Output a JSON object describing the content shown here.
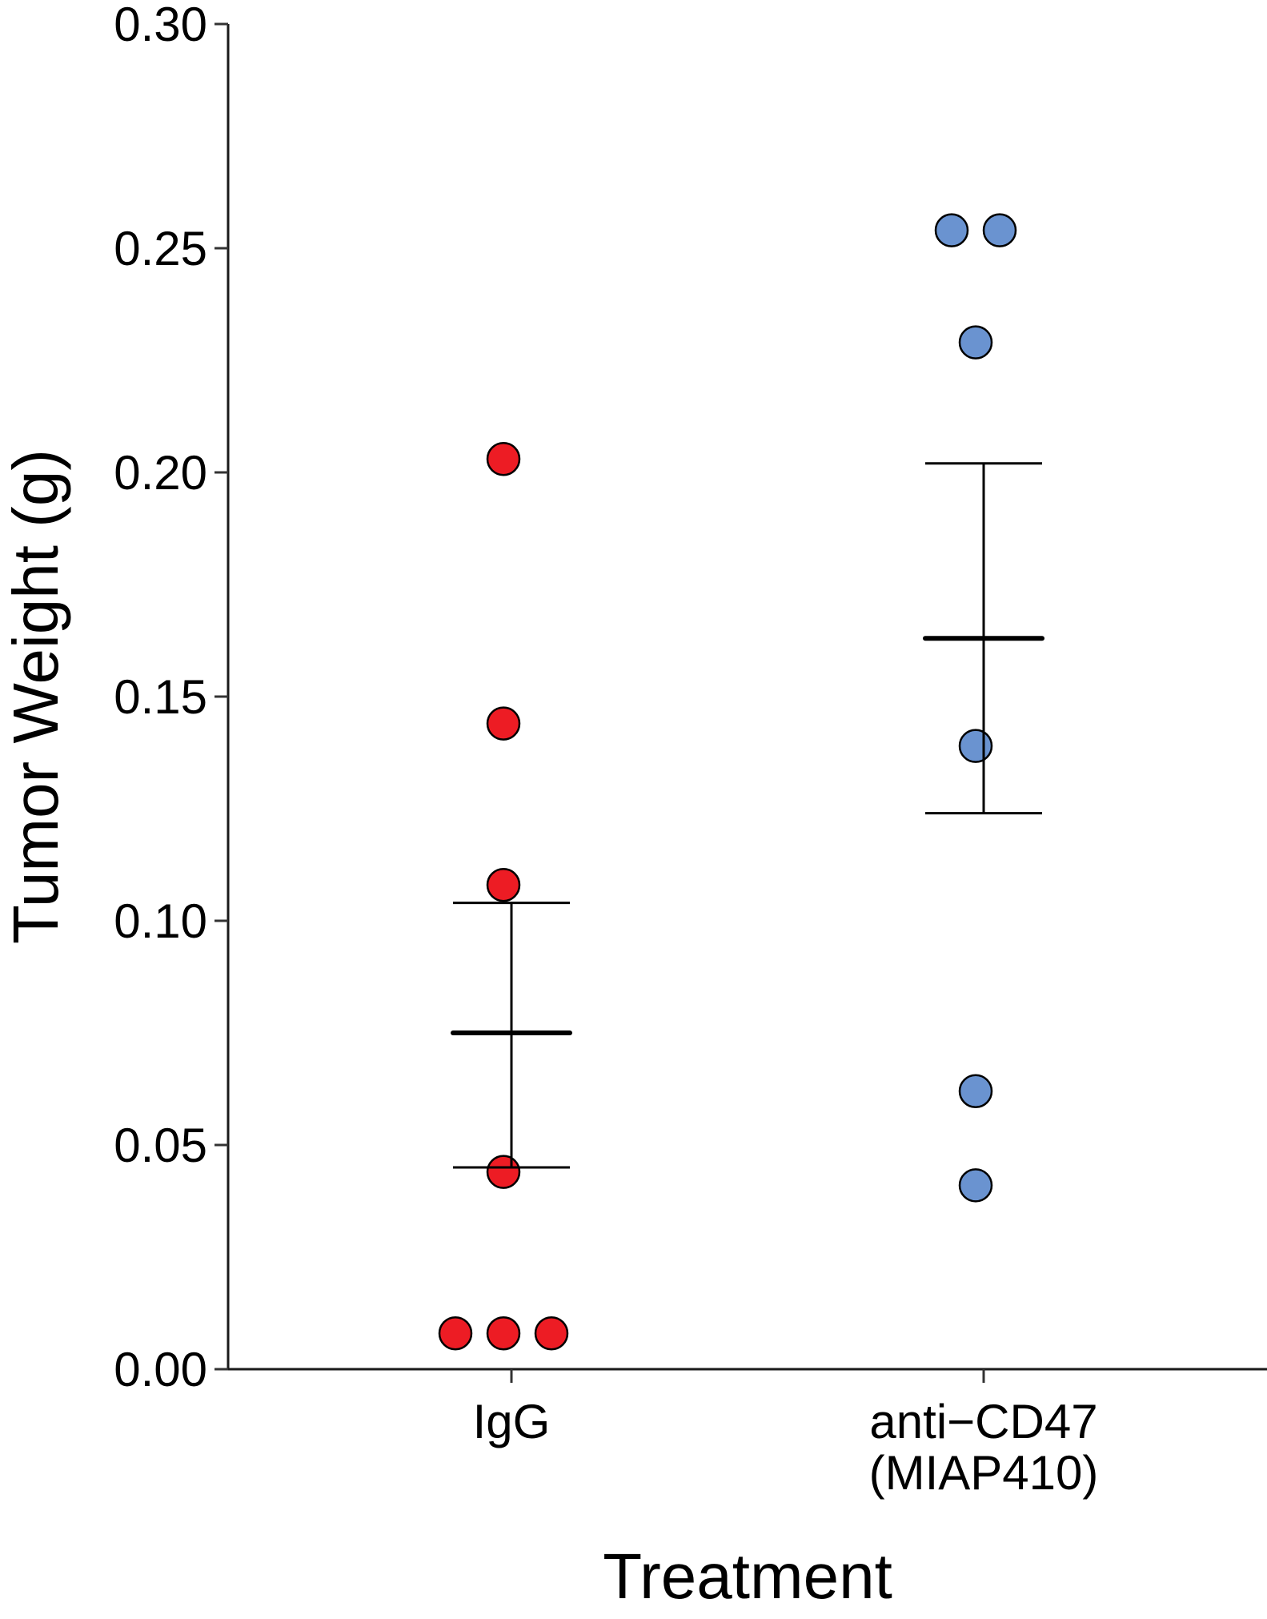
{
  "chart_data": {
    "type": "scatter",
    "subtype": "dot-plot-with-mean-and-sem",
    "title": "",
    "xlabel": "Treatment",
    "ylabel": "Tumor Weight (g)",
    "ylim": [
      0,
      0.3
    ],
    "yticks": [
      0.0,
      0.05,
      0.1,
      0.15,
      0.2,
      0.25,
      0.3
    ],
    "ytick_labels": [
      "0.00",
      "0.05",
      "0.10",
      "0.15",
      "0.20",
      "0.25",
      "0.30"
    ],
    "grid": false,
    "legend": "none",
    "categories": [
      {
        "label_lines": [
          "IgG"
        ]
      },
      {
        "label_lines": [
          "anti−CD47",
          "(MIAP410)"
        ]
      }
    ],
    "series": [
      {
        "name": "IgG",
        "color": "#ED1C24",
        "values": [
          0.203,
          0.144,
          0.108,
          0.044,
          0.008,
          0.008,
          0.008
        ],
        "jitter": [
          -0.1,
          -0.1,
          -0.1,
          -0.1,
          -0.7,
          -0.1,
          0.5
        ],
        "mean": 0.075,
        "error_upper": 0.104,
        "error_lower": 0.045
      },
      {
        "name": "anti−CD47 (MIAP410)",
        "color": "#6A93D0",
        "values": [
          0.254,
          0.254,
          0.229,
          0.139,
          0.062,
          0.041
        ],
        "jitter": [
          -0.4,
          0.2,
          -0.1,
          -0.1,
          -0.1,
          -0.1
        ],
        "mean": 0.163,
        "error_upper": 0.202,
        "error_lower": 0.124
      }
    ]
  }
}
